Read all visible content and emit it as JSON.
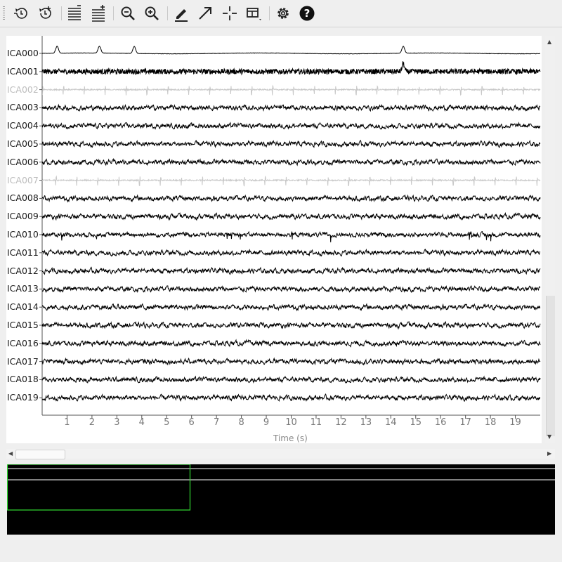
{
  "toolbar": {
    "buttons": [
      {
        "name": "scroll-back-in-time-icon",
        "title": ""
      },
      {
        "name": "scroll-forward-in-time-icon",
        "title": ""
      },
      {
        "name": "fewer-channels-icon",
        "title": ""
      },
      {
        "name": "more-channels-icon",
        "title": ""
      },
      {
        "name": "zoom-out-icon",
        "title": ""
      },
      {
        "name": "zoom-in-icon",
        "title": ""
      },
      {
        "name": "annotation-mode-icon",
        "title": ""
      },
      {
        "name": "scalebar-toggle-icon",
        "title": ""
      },
      {
        "name": "crosshair-icon",
        "title": ""
      },
      {
        "name": "projector-menu-icon",
        "title": ""
      },
      {
        "name": "settings-gear-icon",
        "title": ""
      },
      {
        "name": "help-icon",
        "title": ""
      }
    ]
  },
  "plot": {
    "channels": [
      {
        "label": "ICA000",
        "bad": false,
        "style": "eog"
      },
      {
        "label": "ICA001",
        "bad": false,
        "style": "dense"
      },
      {
        "label": "ICA002",
        "bad": true,
        "style": "ecg"
      },
      {
        "label": "ICA003",
        "bad": false,
        "style": "noise"
      },
      {
        "label": "ICA004",
        "bad": false,
        "style": "noise"
      },
      {
        "label": "ICA005",
        "bad": false,
        "style": "noise"
      },
      {
        "label": "ICA006",
        "bad": false,
        "style": "noise"
      },
      {
        "label": "ICA007",
        "bad": true,
        "style": "ecg2"
      },
      {
        "label": "ICA008",
        "bad": false,
        "style": "noise"
      },
      {
        "label": "ICA009",
        "bad": false,
        "style": "noise"
      },
      {
        "label": "ICA010",
        "bad": false,
        "style": "spiky"
      },
      {
        "label": "ICA011",
        "bad": false,
        "style": "noise"
      },
      {
        "label": "ICA012",
        "bad": false,
        "style": "noise"
      },
      {
        "label": "ICA013",
        "bad": false,
        "style": "noise"
      },
      {
        "label": "ICA014",
        "bad": false,
        "style": "noise"
      },
      {
        "label": "ICA015",
        "bad": false,
        "style": "noise"
      },
      {
        "label": "ICA016",
        "bad": false,
        "style": "noise"
      },
      {
        "label": "ICA017",
        "bad": false,
        "style": "noise"
      },
      {
        "label": "ICA018",
        "bad": false,
        "style": "noise"
      },
      {
        "label": "ICA019",
        "bad": false,
        "style": "noise"
      }
    ],
    "x_ticks": [
      "1",
      "2",
      "3",
      "4",
      "5",
      "6",
      "7",
      "8",
      "9",
      "10",
      "11",
      "12",
      "13",
      "14",
      "15",
      "16",
      "17",
      "18",
      "19"
    ],
    "x_range_s": [
      0,
      20
    ],
    "xlabel": "Time (s)",
    "eog_blink_times_s": [
      0.6,
      2.3,
      3.7,
      14.5
    ],
    "ecg_beat_period_s": 0.84
  },
  "overview": {
    "background": "#000000",
    "window_color": "#33dd33",
    "line_color": "#ffffff"
  },
  "colors": {
    "trace": "#000000",
    "bad_trace": "#c8c8c8",
    "axis": "#555555"
  }
}
